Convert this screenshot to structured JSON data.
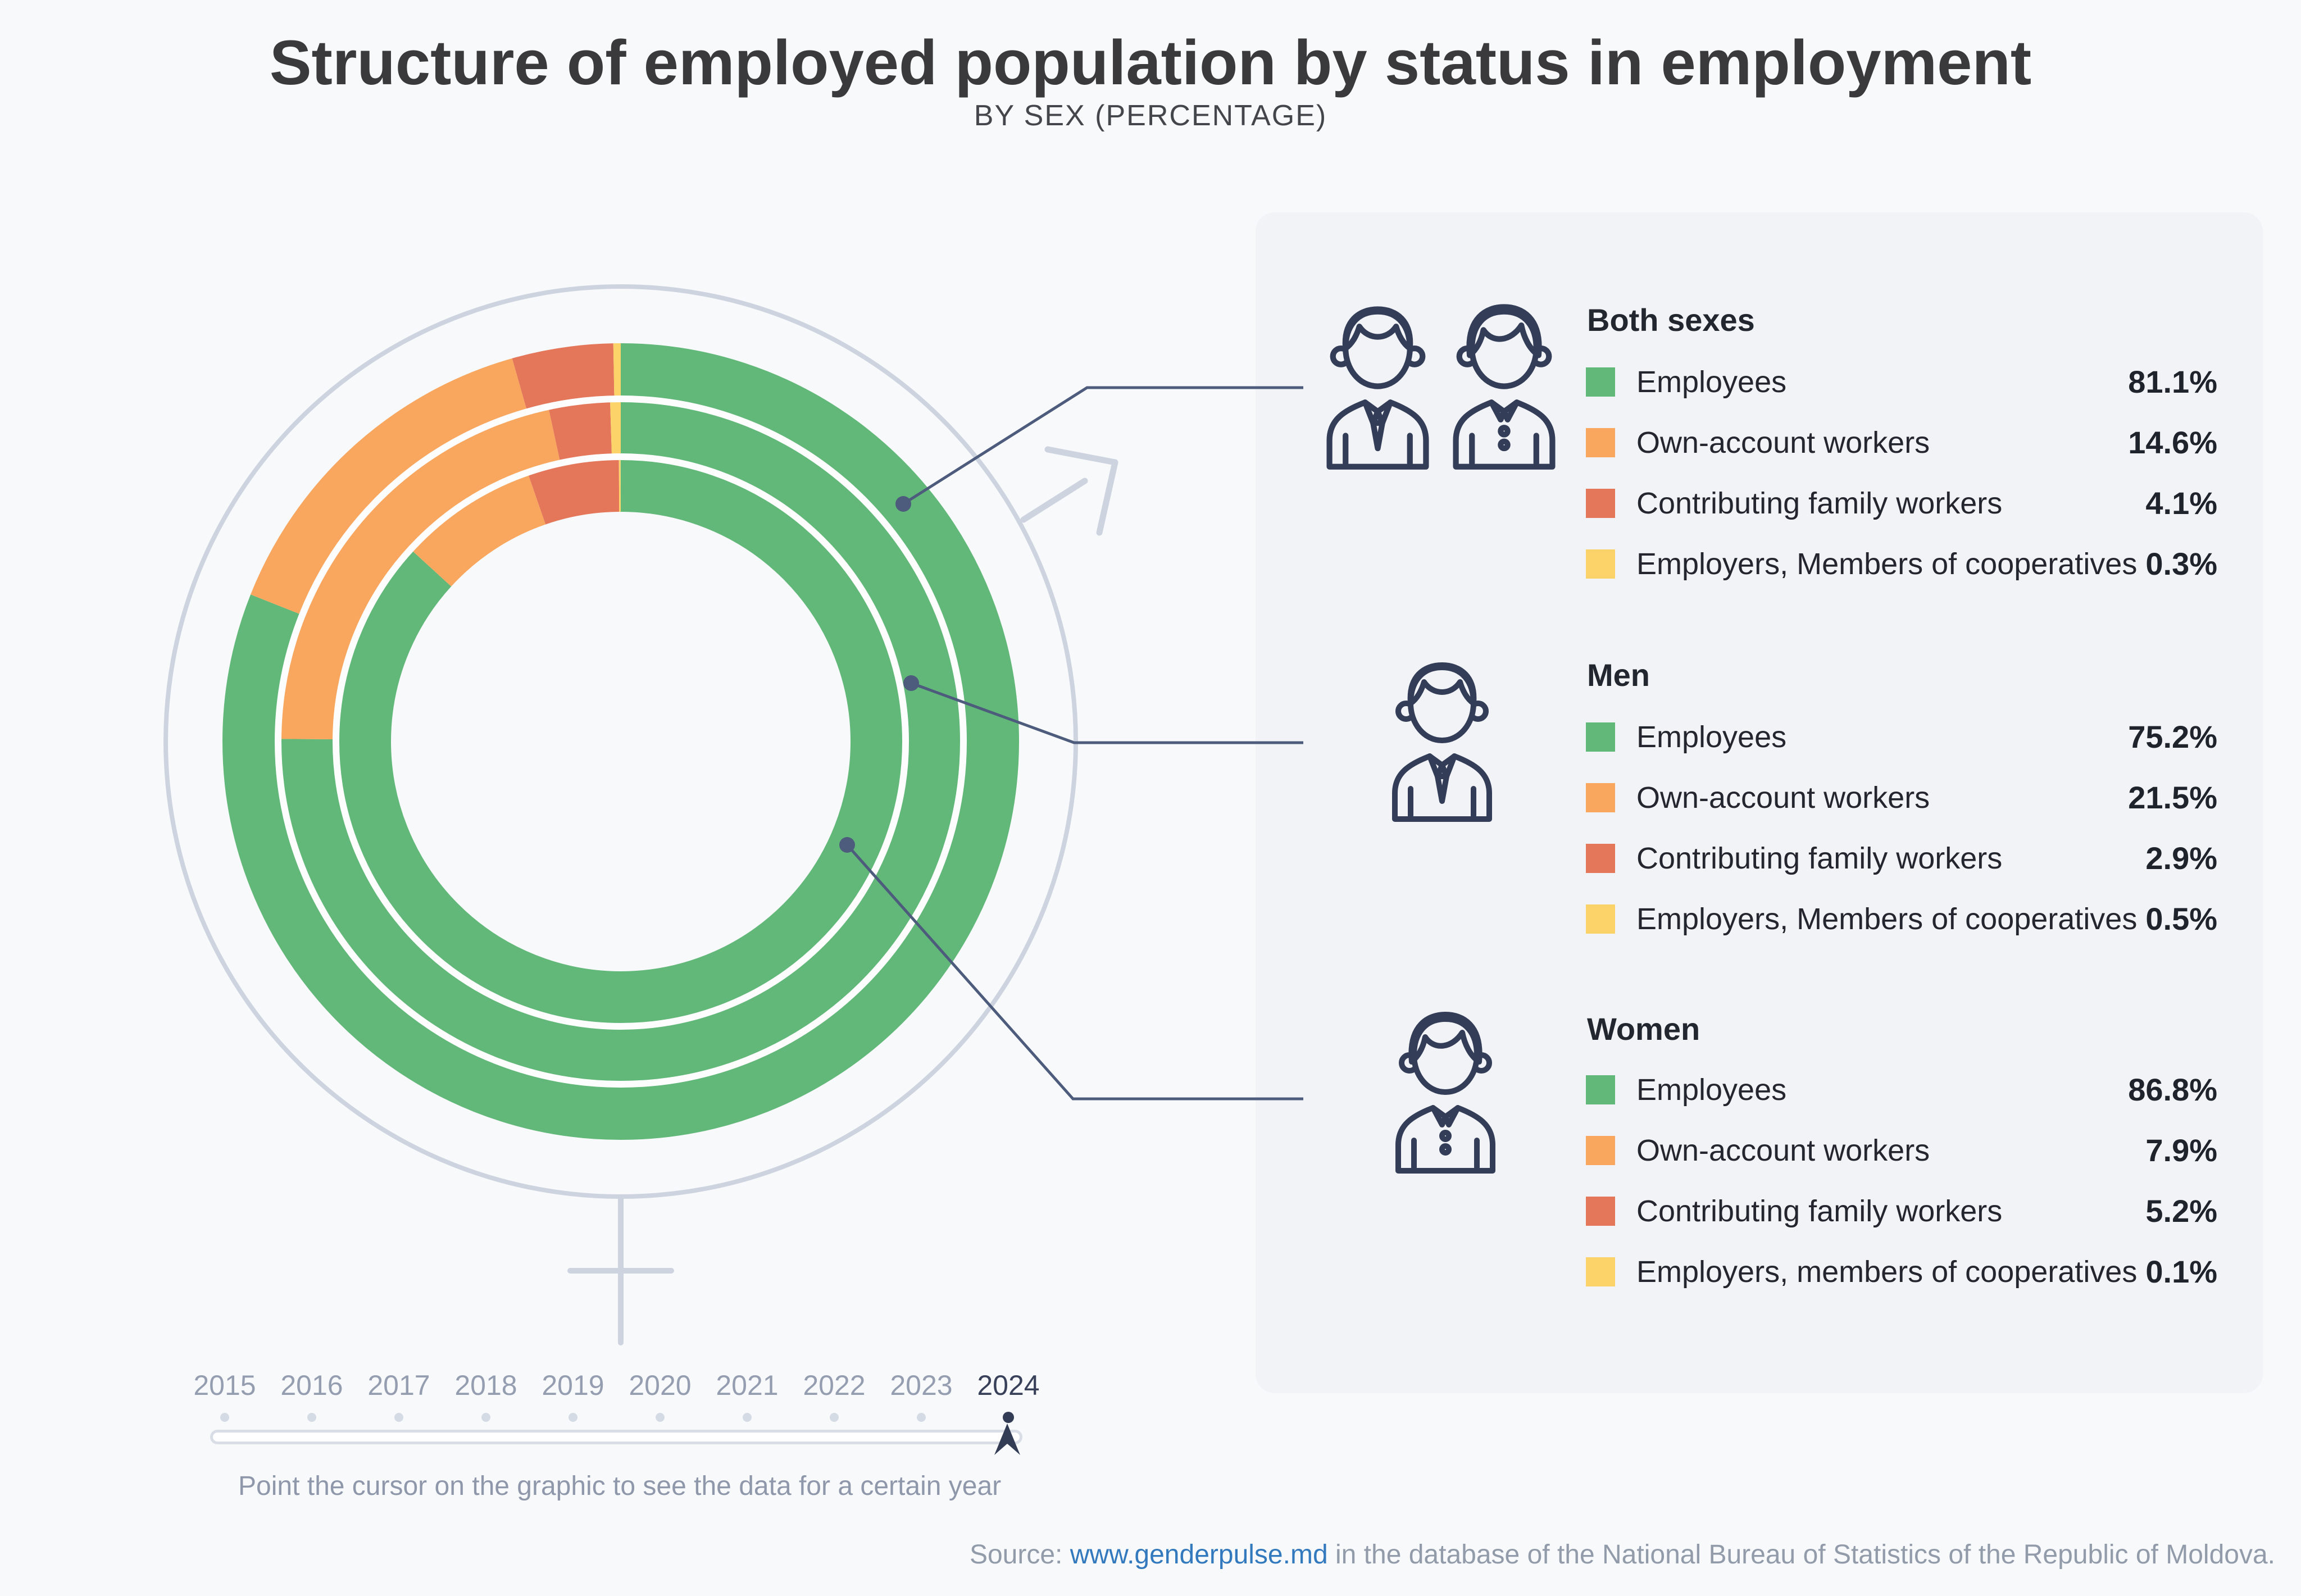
{
  "header": {
    "title": "Structure of employed population by status in employment",
    "subtitle": "BY SEX (PERCENTAGE)"
  },
  "colors": {
    "employees": "#61b878",
    "own_account_workers": "#f9a65e",
    "contributing_family_workers": "#e4775a",
    "employers_members_of_cooperatives": "#fbd368",
    "callout": "#4d5b7c",
    "gender_symbol": "#cdd4df",
    "navy": "#333c55",
    "panel_bg": "#f1f3f6",
    "link_blue": "#3279bd"
  },
  "chart_data": {
    "type": "donut-multi-ring",
    "title": "Structure of employed population by status in employment, by sex, percentage",
    "year_shown": "2024",
    "categories": [
      "Employees",
      "Own-account workers",
      "Contributing family workers",
      "Employers, Members of cooperatives"
    ],
    "colors": [
      "#61b878",
      "#f9a65e",
      "#e4775a",
      "#fbd368"
    ],
    "direction": "clockwise",
    "start_angle_deg": 0,
    "rings": [
      {
        "name": "Both sexes",
        "position": "outer",
        "values": [
          81.1,
          14.6,
          4.1,
          0.3
        ]
      },
      {
        "name": "Men",
        "position": "middle",
        "values": [
          75.2,
          21.5,
          2.9,
          0.5
        ]
      },
      {
        "name": "Women",
        "position": "inner",
        "values": [
          86.8,
          7.9,
          5.2,
          0.1
        ]
      }
    ]
  },
  "legend": {
    "groups": [
      {
        "name": "Both sexes",
        "icon": "both-sexes-icon",
        "items": [
          {
            "label": "Employees",
            "value": "81.1%",
            "color": "#61b878"
          },
          {
            "label": "Own-account workers",
            "value": "14.6%",
            "color": "#f9a65e"
          },
          {
            "label": "Contributing family workers",
            "value": "4.1%",
            "color": "#e4775a"
          },
          {
            "label": "Employers, Members of cooperatives",
            "value": "0.3%",
            "color": "#fbd368"
          }
        ]
      },
      {
        "name": "Men",
        "icon": "man-icon",
        "items": [
          {
            "label": "Employees",
            "value": "75.2%",
            "color": "#61b878"
          },
          {
            "label": "Own-account workers",
            "value": "21.5%",
            "color": "#f9a65e"
          },
          {
            "label": "Contributing family workers",
            "value": "2.9%",
            "color": "#e4775a"
          },
          {
            "label": "Employers, Members of cooperatives",
            "value": "0.5%",
            "color": "#fbd368"
          }
        ]
      },
      {
        "name": "Women",
        "icon": "woman-icon",
        "items": [
          {
            "label": "Employees",
            "value": "86.8%",
            "color": "#61b878"
          },
          {
            "label": "Own-account workers",
            "value": "7.9%",
            "color": "#f9a65e"
          },
          {
            "label": "Contributing family workers",
            "value": "5.2%",
            "color": "#e4775a"
          },
          {
            "label": "Employers, members of cooperatives",
            "value": "0.1%",
            "color": "#fbd368"
          }
        ]
      }
    ]
  },
  "timeline": {
    "years": [
      "2015",
      "2016",
      "2017",
      "2018",
      "2019",
      "2020",
      "2021",
      "2022",
      "2023",
      "2024"
    ],
    "selected": "2024",
    "hint": "Point the cursor on the graphic to see the data for a certain year"
  },
  "source": {
    "prefix": "Source: ",
    "link": "www.genderpulse.md",
    "suffix": " in the database of the National Bureau of Statistics of the Republic of Moldova."
  }
}
